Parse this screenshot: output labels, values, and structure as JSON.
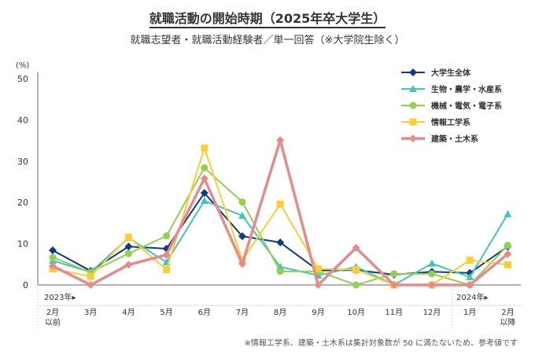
{
  "title": "就職活動の開始時期（2025年卒大学生）",
  "subtitle": "就職志望者・就職活動経験者／単一回答（※大学院生除く）",
  "footnote": "※情報工学系、建築・土木系は集計対象数が 50 に満たないため、参考値です",
  "chart_data": {
    "type": "line",
    "ylabel": "(%)",
    "ylim": [
      0,
      50
    ],
    "yticks": [
      0,
      10,
      20,
      30,
      40,
      50
    ],
    "grid": false,
    "legend": "top-right",
    "categories": [
      "2月\n以前",
      "3月",
      "4月",
      "5月",
      "6月",
      "7月",
      "8月",
      "9月",
      "10月",
      "11月",
      "12月",
      "1月",
      "2月\n以降"
    ],
    "year_labels": [
      {
        "label": "2023年▸",
        "at": "2月\n以前"
      },
      {
        "label": "2024年▸",
        "at": "1月"
      }
    ],
    "series": [
      {
        "name": "大学生全体",
        "color": "#0d3c84",
        "marker": "diamond",
        "values": [
          8.4,
          3.4,
          9.3,
          8.8,
          22.3,
          11.8,
          10.3,
          3.5,
          3.6,
          2.5,
          3.2,
          2.9,
          9.3
        ]
      },
      {
        "name": "生物・農学・水産系",
        "color": "#45c3bf",
        "marker": "triangle",
        "values": [
          5.9,
          3.1,
          11.4,
          5.5,
          20.4,
          16.8,
          4.4,
          2.3,
          4.4,
          0,
          5.2,
          1.9,
          17.2
        ]
      },
      {
        "name": "機械・電気・電子系",
        "color": "#92d050",
        "marker": "circle",
        "values": [
          6.7,
          3.1,
          7.6,
          11.9,
          28.4,
          20.1,
          3.3,
          3.3,
          0,
          2.7,
          2.7,
          0,
          9.6
        ]
      },
      {
        "name": "情報工学系",
        "color": "#ffcc33",
        "marker": "square",
        "values": [
          3.9,
          2.1,
          11.6,
          3.7,
          33.2,
          6.0,
          19.6,
          3.9,
          3.7,
          0,
          0,
          6.0,
          4.9
        ]
      },
      {
        "name": "建築・土木系",
        "color": "#e88a8a",
        "marker": "diamond",
        "values": [
          4.6,
          0,
          4.9,
          7.3,
          25.8,
          5.1,
          35.1,
          0,
          9.0,
          0,
          0,
          0,
          7.5
        ]
      }
    ]
  }
}
